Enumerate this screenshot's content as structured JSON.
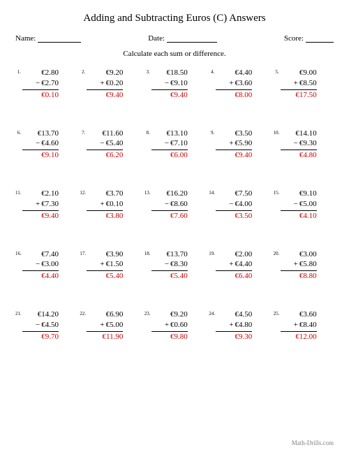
{
  "title": "Adding and Subtracting Euros (C) Answers",
  "name_label": "Name:",
  "date_label": "Date:",
  "score_label": "Score:",
  "instruction": "Calculate each sum or difference.",
  "footer": "Math-Drills.com",
  "answer_color": "#cc0000",
  "problems": [
    {
      "n": "1.",
      "a": "€2.80",
      "op": "−",
      "b": "€2.70",
      "ans": "€0.10"
    },
    {
      "n": "2.",
      "a": "€9.20",
      "op": "+",
      "b": "€0.20",
      "ans": "€9.40"
    },
    {
      "n": "3.",
      "a": "€18.50",
      "op": "−",
      "b": "€9.10",
      "ans": "€9.40"
    },
    {
      "n": "4.",
      "a": "€4.40",
      "op": "+",
      "b": "€3.60",
      "ans": "€8.00"
    },
    {
      "n": "5.",
      "a": "€9.00",
      "op": "+",
      "b": "€8.50",
      "ans": "€17.50"
    },
    {
      "n": "6.",
      "a": "€13.70",
      "op": "−",
      "b": "€4.60",
      "ans": "€9.10"
    },
    {
      "n": "7.",
      "a": "€11.60",
      "op": "−",
      "b": "€5.40",
      "ans": "€6.20"
    },
    {
      "n": "8.",
      "a": "€13.10",
      "op": "−",
      "b": "€7.10",
      "ans": "€6.00"
    },
    {
      "n": "9.",
      "a": "€3.50",
      "op": "+",
      "b": "€5.90",
      "ans": "€9.40"
    },
    {
      "n": "10.",
      "a": "€14.10",
      "op": "−",
      "b": "€9.30",
      "ans": "€4.80"
    },
    {
      "n": "11.",
      "a": "€2.10",
      "op": "+",
      "b": "€7.30",
      "ans": "€9.40"
    },
    {
      "n": "12.",
      "a": "€3.70",
      "op": "+",
      "b": "€0.10",
      "ans": "€3.80"
    },
    {
      "n": "13.",
      "a": "€16.20",
      "op": "−",
      "b": "€8.60",
      "ans": "€7.60"
    },
    {
      "n": "14.",
      "a": "€7.50",
      "op": "−",
      "b": "€4.00",
      "ans": "€3.50"
    },
    {
      "n": "15.",
      "a": "€9.10",
      "op": "−",
      "b": "€5.00",
      "ans": "€4.10"
    },
    {
      "n": "16.",
      "a": "€7.40",
      "op": "−",
      "b": "€3.00",
      "ans": "€4.40"
    },
    {
      "n": "17.",
      "a": "€3.90",
      "op": "+",
      "b": "€1.50",
      "ans": "€5.40"
    },
    {
      "n": "18.",
      "a": "€13.70",
      "op": "−",
      "b": "€8.30",
      "ans": "€5.40"
    },
    {
      "n": "19.",
      "a": "€2.00",
      "op": "+",
      "b": "€4.40",
      "ans": "€6.40"
    },
    {
      "n": "20.",
      "a": "€3.00",
      "op": "+",
      "b": "€5.80",
      "ans": "€8.80"
    },
    {
      "n": "21.",
      "a": "€14.20",
      "op": "−",
      "b": "€4.50",
      "ans": "€9.70"
    },
    {
      "n": "22.",
      "a": "€6.90",
      "op": "+",
      "b": "€5.00",
      "ans": "€11.90"
    },
    {
      "n": "23.",
      "a": "€9.20",
      "op": "+",
      "b": "€0.60",
      "ans": "€9.80"
    },
    {
      "n": "24.",
      "a": "€4.50",
      "op": "+",
      "b": "€4.80",
      "ans": "€9.30"
    },
    {
      "n": "25.",
      "a": "€3.60",
      "op": "+",
      "b": "€8.40",
      "ans": "€12.00"
    }
  ]
}
